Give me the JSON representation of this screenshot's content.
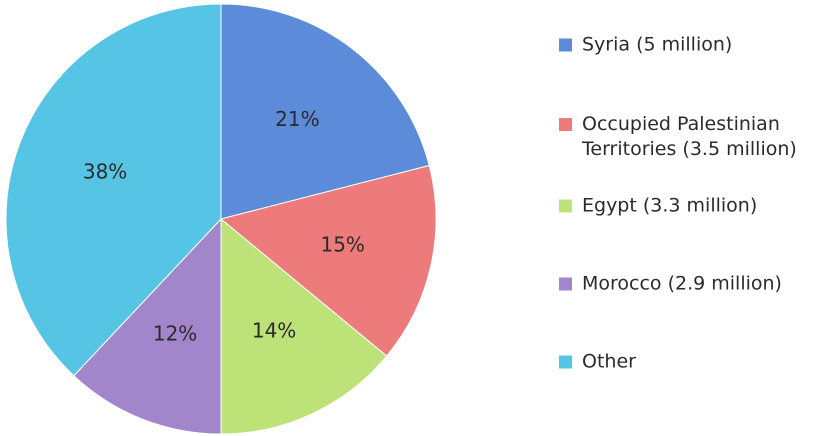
{
  "chart_data": {
    "type": "pie",
    "slices": [
      {
        "label": "Syria (5 million)",
        "label_lines": [
          "Syria (5 million)"
        ],
        "value": 21,
        "value_label": "21%",
        "color": "#5b8bd9"
      },
      {
        "label": "Occupied Palestinian Territories (3.5 million)",
        "label_lines": [
          "Occupied Palestinian",
          "Territories (3.5 million)"
        ],
        "value": 15,
        "value_label": "15%",
        "color": "#ee7b7b"
      },
      {
        "label": "Egypt (3.3 million)",
        "label_lines": [
          "Egypt (3.3 million)"
        ],
        "value": 14,
        "value_label": "14%",
        "color": "#bde278"
      },
      {
        "label": "Morocco (2.9 million)",
        "label_lines": [
          "Morocco (2.9 million)"
        ],
        "value": 12,
        "value_label": "12%",
        "color": "#a186cc"
      },
      {
        "label": "Other",
        "label_lines": [
          "Other"
        ],
        "value": 38,
        "value_label": "38%",
        "color": "#56c5e5"
      }
    ],
    "legend_position": "right"
  }
}
